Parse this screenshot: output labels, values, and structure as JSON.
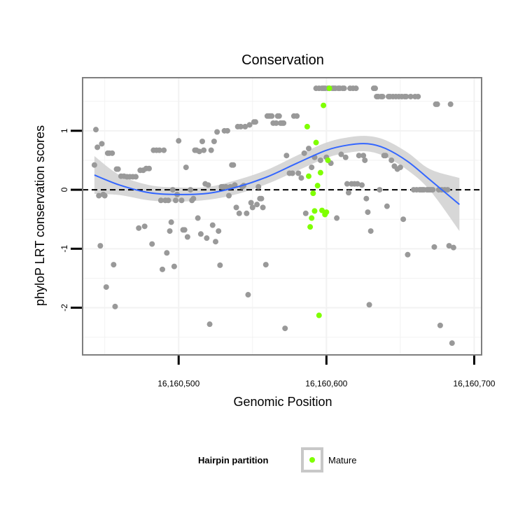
{
  "chart_data": {
    "type": "scatter",
    "title": "Conservation",
    "xlabel": "Genomic Position",
    "ylabel": "phyloP LRT conservation scores",
    "xlim": [
      16160435,
      16160705
    ],
    "ylim": [
      -2.8,
      1.9
    ],
    "x_ticks": [
      16160500,
      16160600,
      16160700
    ],
    "x_tick_labels": [
      "16,160,500",
      "16,160,600",
      "16,160,700"
    ],
    "y_ticks": [
      -2,
      -1,
      0,
      1
    ],
    "y_tick_labels": [
      "-2",
      "-1",
      "0",
      "1"
    ],
    "reference_line": {
      "y": 0,
      "style": "dashed"
    },
    "colors": {
      "other": "#999999",
      "mature": "#7FFF00",
      "smooth": "#3366FF",
      "ribbon": "#D3D3D3",
      "panel_border": "#7F7F7F",
      "grid": "#F2F2F2"
    },
    "legend": {
      "title": "Hairpin partition",
      "entries": [
        {
          "label": "Mature",
          "color": "#7FFF00"
        }
      ]
    },
    "series": [
      {
        "name": "Other",
        "points": [
          [
            16160443,
            0.42
          ],
          [
            16160444,
            1.02
          ],
          [
            16160445,
            0.72
          ],
          [
            16160446,
            -0.1
          ],
          [
            16160447,
            -0.95
          ],
          [
            16160448,
            0.78
          ],
          [
            16160449,
            -0.08
          ],
          [
            16160450,
            -0.1
          ],
          [
            16160451,
            -1.65
          ],
          [
            16160452,
            0.62
          ],
          [
            16160453,
            0.62
          ],
          [
            16160455,
            0.62
          ],
          [
            16160456,
            -1.27
          ],
          [
            16160457,
            -1.98
          ],
          [
            16160458,
            0.35
          ],
          [
            16160459,
            0.35
          ],
          [
            16160461,
            0.23
          ],
          [
            16160463,
            0.23
          ],
          [
            16160465,
            0.22
          ],
          [
            16160467,
            0.22
          ],
          [
            16160469,
            0.22
          ],
          [
            16160471,
            0.22
          ],
          [
            16160473,
            -0.65
          ],
          [
            16160474,
            0.33
          ],
          [
            16160476,
            0.33
          ],
          [
            16160477,
            -0.62
          ],
          [
            16160478,
            0.36
          ],
          [
            16160480,
            0.36
          ],
          [
            16160482,
            -0.92
          ],
          [
            16160483,
            0.67
          ],
          [
            16160485,
            0.67
          ],
          [
            16160487,
            0.67
          ],
          [
            16160488,
            -0.18
          ],
          [
            16160489,
            -1.35
          ],
          [
            16160490,
            0.67
          ],
          [
            16160491,
            -0.18
          ],
          [
            16160492,
            -1.07
          ],
          [
            16160493,
            -0.18
          ],
          [
            16160494,
            -0.7
          ],
          [
            16160495,
            -0.55
          ],
          [
            16160496,
            0.0
          ],
          [
            16160497,
            -1.3
          ],
          [
            16160498,
            -0.18
          ],
          [
            16160499,
            -0.08
          ],
          [
            16160500,
            0.83
          ],
          [
            16160502,
            -0.18
          ],
          [
            16160503,
            -0.68
          ],
          [
            16160504,
            -0.68
          ],
          [
            16160505,
            0.38
          ],
          [
            16160506,
            -0.8
          ],
          [
            16160508,
            0.0
          ],
          [
            16160509,
            -0.18
          ],
          [
            16160510,
            -0.15
          ],
          [
            16160511,
            0.67
          ],
          [
            16160512,
            0.67
          ],
          [
            16160513,
            -0.48
          ],
          [
            16160514,
            0.65
          ],
          [
            16160515,
            -0.75
          ],
          [
            16160516,
            0.82
          ],
          [
            16160517,
            0.67
          ],
          [
            16160518,
            0.1
          ],
          [
            16160519,
            -0.82
          ],
          [
            16160520,
            0.08
          ],
          [
            16160521,
            -2.28
          ],
          [
            16160522,
            0.67
          ],
          [
            16160523,
            -0.6
          ],
          [
            16160524,
            0.82
          ],
          [
            16160525,
            -0.88
          ],
          [
            16160526,
            0.98
          ],
          [
            16160527,
            -0.7
          ],
          [
            16160528,
            -1.28
          ],
          [
            16160529,
            0.05
          ],
          [
            16160530,
            0.05
          ],
          [
            16160531,
            1.0
          ],
          [
            16160532,
            0.05
          ],
          [
            16160533,
            1.0
          ],
          [
            16160534,
            -0.1
          ],
          [
            16160535,
            0.05
          ],
          [
            16160536,
            0.42
          ],
          [
            16160537,
            0.42
          ],
          [
            16160538,
            0.08
          ],
          [
            16160539,
            -0.3
          ],
          [
            16160540,
            1.07
          ],
          [
            16160541,
            -0.4
          ],
          [
            16160542,
            1.07
          ],
          [
            16160543,
            0.05
          ],
          [
            16160544,
            0.07
          ],
          [
            16160545,
            1.07
          ],
          [
            16160546,
            -0.4
          ],
          [
            16160547,
            -1.78
          ],
          [
            16160548,
            1.1
          ],
          [
            16160549,
            -0.22
          ],
          [
            16160550,
            -0.3
          ],
          [
            16160551,
            1.15
          ],
          [
            16160552,
            1.15
          ],
          [
            16160553,
            -0.25
          ],
          [
            16160554,
            0.05
          ],
          [
            16160555,
            -0.15
          ],
          [
            16160556,
            -0.15
          ],
          [
            16160557,
            -0.3
          ],
          [
            16160559,
            -1.27
          ],
          [
            16160560,
            1.25
          ],
          [
            16160561,
            1.25
          ],
          [
            16160562,
            1.25
          ],
          [
            16160563,
            1.25
          ],
          [
            16160564,
            1.13
          ],
          [
            16160566,
            1.13
          ],
          [
            16160567,
            1.25
          ],
          [
            16160568,
            1.25
          ],
          [
            16160569,
            1.13
          ],
          [
            16160570,
            1.13
          ],
          [
            16160571,
            1.13
          ],
          [
            16160572,
            -2.35
          ],
          [
            16160573,
            0.58
          ],
          [
            16160575,
            0.28
          ],
          [
            16160577,
            0.28
          ],
          [
            16160578,
            1.25
          ],
          [
            16160580,
            1.25
          ],
          [
            16160581,
            0.28
          ],
          [
            16160583,
            0.2
          ],
          [
            16160585,
            0.62
          ],
          [
            16160586,
            -0.4
          ],
          [
            16160588,
            0.7
          ],
          [
            16160590,
            0.38
          ],
          [
            16160592,
            0.55
          ],
          [
            16160593,
            1.72
          ],
          [
            16160595,
            1.72
          ],
          [
            16160596,
            0.5
          ],
          [
            16160597,
            1.72
          ],
          [
            16160598,
            1.72
          ],
          [
            16160599,
            1.72
          ],
          [
            16160600,
            0.55
          ],
          [
            16160601,
            1.72
          ],
          [
            16160602,
            1.72
          ],
          [
            16160603,
            0.45
          ],
          [
            16160604,
            1.72
          ],
          [
            16160605,
            1.72
          ],
          [
            16160606,
            1.72
          ],
          [
            16160607,
            -0.48
          ],
          [
            16160608,
            1.72
          ],
          [
            16160609,
            1.72
          ],
          [
            16160610,
            0.6
          ],
          [
            16160611,
            1.72
          ],
          [
            16160612,
            1.72
          ],
          [
            16160613,
            0.55
          ],
          [
            16160614,
            0.1
          ],
          [
            16160615,
            -0.05
          ],
          [
            16160616,
            1.72
          ],
          [
            16160617,
            0.1
          ],
          [
            16160618,
            1.72
          ],
          [
            16160619,
            0.1
          ],
          [
            16160620,
            1.72
          ],
          [
            16160621,
            0.1
          ],
          [
            16160622,
            0.58
          ],
          [
            16160624,
            0.08
          ],
          [
            16160625,
            0.58
          ],
          [
            16160626,
            0.5
          ],
          [
            16160627,
            -0.15
          ],
          [
            16160628,
            -0.38
          ],
          [
            16160629,
            -1.95
          ],
          [
            16160630,
            -0.7
          ],
          [
            16160632,
            1.72
          ],
          [
            16160633,
            1.72
          ],
          [
            16160634,
            1.58
          ],
          [
            16160635,
            1.58
          ],
          [
            16160636,
            0.0
          ],
          [
            16160637,
            1.58
          ],
          [
            16160638,
            1.58
          ],
          [
            16160639,
            0.58
          ],
          [
            16160640,
            0.58
          ],
          [
            16160641,
            -0.28
          ],
          [
            16160642,
            1.58
          ],
          [
            16160643,
            1.58
          ],
          [
            16160644,
            0.5
          ],
          [
            16160645,
            1.58
          ],
          [
            16160646,
            0.4
          ],
          [
            16160647,
            1.58
          ],
          [
            16160648,
            0.35
          ],
          [
            16160649,
            1.58
          ],
          [
            16160650,
            0.38
          ],
          [
            16160651,
            1.58
          ],
          [
            16160652,
            -0.5
          ],
          [
            16160653,
            1.58
          ],
          [
            16160654,
            1.58
          ],
          [
            16160655,
            -1.1
          ],
          [
            16160657,
            1.58
          ],
          [
            16160659,
            0.0
          ],
          [
            16160660,
            1.58
          ],
          [
            16160661,
            0.0
          ],
          [
            16160662,
            1.58
          ],
          [
            16160663,
            0.0
          ],
          [
            16160664,
            0.0
          ],
          [
            16160665,
            0.0
          ],
          [
            16160666,
            0.0
          ],
          [
            16160668,
            0.0
          ],
          [
            16160669,
            0.0
          ],
          [
            16160670,
            0.0
          ],
          [
            16160671,
            0.0
          ],
          [
            16160672,
            0.0
          ],
          [
            16160673,
            -0.97
          ],
          [
            16160674,
            1.45
          ],
          [
            16160675,
            1.45
          ],
          [
            16160676,
            0.0
          ],
          [
            16160677,
            -2.3
          ],
          [
            16160678,
            0.0
          ],
          [
            16160680,
            0.0
          ],
          [
            16160682,
            0.0
          ],
          [
            16160683,
            -0.95
          ],
          [
            16160684,
            1.45
          ],
          [
            16160685,
            -2.6
          ],
          [
            16160686,
            -0.98
          ]
        ]
      },
      {
        "name": "Mature",
        "points": [
          [
            16160587,
            1.07
          ],
          [
            16160588,
            0.23
          ],
          [
            16160589,
            -0.63
          ],
          [
            16160590,
            -0.48
          ],
          [
            16160591,
            -0.06
          ],
          [
            16160592,
            -0.36
          ],
          [
            16160593,
            0.8
          ],
          [
            16160594,
            0.07
          ],
          [
            16160595,
            -2.13
          ],
          [
            16160596,
            0.29
          ],
          [
            16160597,
            -0.35
          ],
          [
            16160598,
            1.43
          ],
          [
            16160599,
            -0.42
          ],
          [
            16160600,
            -0.38
          ],
          [
            16160601,
            0.5
          ],
          [
            16160602,
            1.72
          ]
        ]
      }
    ],
    "smooth": {
      "method": "loess",
      "x": [
        16160443,
        16160460,
        16160480,
        16160500,
        16160520,
        16160540,
        16160560,
        16160580,
        16160600,
        16160615,
        16160628,
        16160640,
        16160655,
        16160670,
        16160690
      ],
      "y": [
        0.25,
        0.08,
        -0.05,
        -0.08,
        -0.06,
        0.05,
        0.22,
        0.45,
        0.67,
        0.76,
        0.78,
        0.7,
        0.48,
        0.17,
        -0.25
      ],
      "se_upper": [
        0.57,
        0.25,
        0.08,
        0.04,
        0.05,
        0.17,
        0.34,
        0.58,
        0.8,
        0.89,
        0.91,
        0.84,
        0.63,
        0.35,
        0.2
      ],
      "se_lower": [
        -0.07,
        -0.09,
        -0.18,
        -0.2,
        -0.17,
        -0.07,
        0.1,
        0.32,
        0.54,
        0.63,
        0.65,
        0.56,
        0.33,
        -0.01,
        -0.7
      ]
    }
  }
}
